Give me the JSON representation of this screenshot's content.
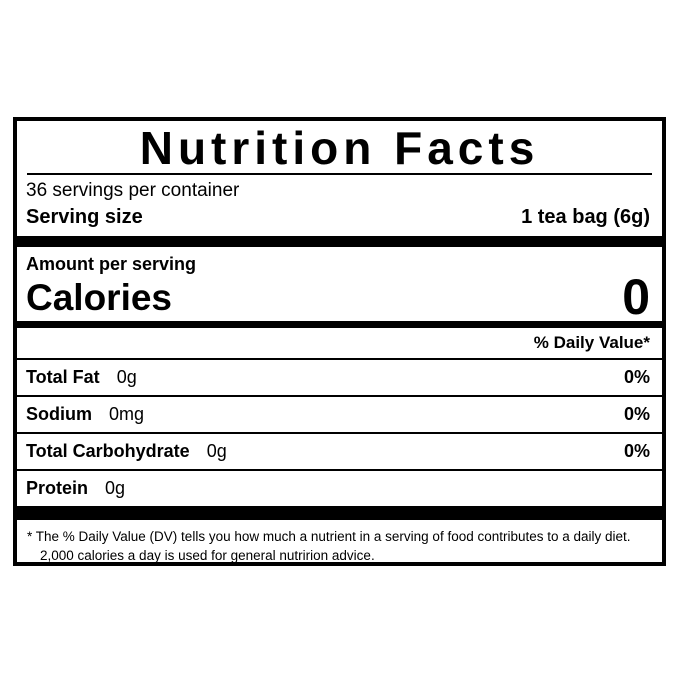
{
  "label": {
    "title": "Nutrition Facts",
    "servings_per_container": "36 servings per container",
    "serving_size_label": "Serving size",
    "serving_size_value": "1 tea bag (6g)",
    "amount_per_serving": "Amount per serving",
    "calories_label": "Calories",
    "calories_value": "0",
    "daily_value_header": "% Daily Value*",
    "nutrients": [
      {
        "name": "Total Fat",
        "amount": "0g",
        "dv": "0%"
      },
      {
        "name": "Sodium",
        "amount": "0mg",
        "dv": "0%"
      },
      {
        "name": "Total Carbohydrate",
        "amount": "0g",
        "dv": "0%"
      },
      {
        "name": "Protein",
        "amount": "0g",
        "dv": ""
      }
    ],
    "footnote": "* The % Daily Value (DV) tells you how much a nutrient in a serving of food contributes to a daily diet. 2,000 calories a day is used for general nutririon advice.",
    "colors": {
      "ink": "#000000",
      "background": "#ffffff"
    }
  }
}
